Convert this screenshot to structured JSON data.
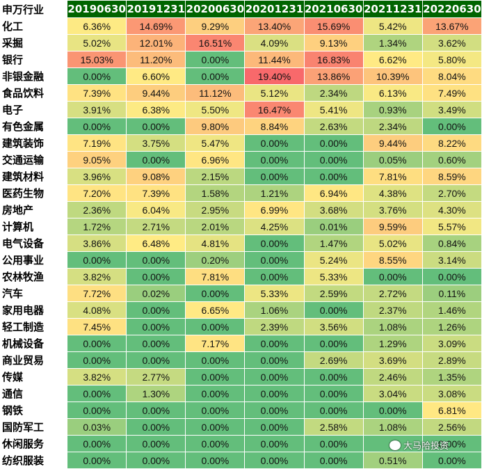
{
  "table": {
    "corner_label": "申万行业",
    "columns": [
      "20190630",
      "20191231",
      "20200630",
      "20201231",
      "20210630",
      "20211231",
      "20220630"
    ],
    "rows": [
      {
        "label": "化工",
        "values": [
          "6.36%",
          "14.69%",
          "9.29%",
          "13.40%",
          "15.69%",
          "5.42%",
          "13.67%"
        ]
      },
      {
        "label": "采掘",
        "values": [
          "5.02%",
          "12.01%",
          "16.51%",
          "4.09%",
          "9.13%",
          "1.34%",
          "3.62%"
        ]
      },
      {
        "label": "银行",
        "values": [
          "15.03%",
          "11.20%",
          "0.00%",
          "11.44%",
          "16.83%",
          "6.62%",
          "5.80%"
        ]
      },
      {
        "label": "非银金融",
        "values": [
          "0.00%",
          "6.60%",
          "0.00%",
          "19.40%",
          "13.86%",
          "10.39%",
          "8.04%"
        ]
      },
      {
        "label": "食品饮料",
        "values": [
          "7.39%",
          "9.44%",
          "11.12%",
          "5.12%",
          "2.34%",
          "6.13%",
          "7.49%"
        ]
      },
      {
        "label": "电子",
        "values": [
          "3.91%",
          "6.38%",
          "5.50%",
          "16.47%",
          "5.41%",
          "0.93%",
          "3.49%"
        ]
      },
      {
        "label": "有色金属",
        "values": [
          "0.00%",
          "0.00%",
          "9.80%",
          "8.84%",
          "2.63%",
          "2.34%",
          "0.00%"
        ]
      },
      {
        "label": "建筑装饰",
        "values": [
          "7.19%",
          "3.75%",
          "5.47%",
          "0.00%",
          "0.00%",
          "9.44%",
          "8.22%"
        ]
      },
      {
        "label": "交通运输",
        "values": [
          "9.05%",
          "0.00%",
          "6.96%",
          "0.00%",
          "0.00%",
          "0.05%",
          "0.60%"
        ]
      },
      {
        "label": "建筑材料",
        "values": [
          "3.96%",
          "9.08%",
          "2.15%",
          "0.00%",
          "0.00%",
          "7.81%",
          "8.59%"
        ]
      },
      {
        "label": "医药生物",
        "values": [
          "7.20%",
          "7.39%",
          "1.58%",
          "1.21%",
          "6.94%",
          "4.38%",
          "2.70%"
        ]
      },
      {
        "label": "房地产",
        "values": [
          "2.36%",
          "6.04%",
          "2.95%",
          "6.99%",
          "3.68%",
          "3.76%",
          "4.30%"
        ]
      },
      {
        "label": "计算机",
        "values": [
          "1.72%",
          "2.71%",
          "2.01%",
          "4.25%",
          "0.01%",
          "9.59%",
          "5.57%"
        ]
      },
      {
        "label": "电气设备",
        "values": [
          "3.86%",
          "6.48%",
          "4.81%",
          "0.00%",
          "1.47%",
          "5.02%",
          "0.84%"
        ]
      },
      {
        "label": "公用事业",
        "values": [
          "0.00%",
          "0.00%",
          "0.20%",
          "0.00%",
          "5.24%",
          "8.55%",
          "3.14%"
        ]
      },
      {
        "label": "农林牧渔",
        "values": [
          "3.82%",
          "0.00%",
          "7.81%",
          "0.00%",
          "5.33%",
          "0.00%",
          "0.00%"
        ]
      },
      {
        "label": "汽车",
        "values": [
          "7.72%",
          "0.02%",
          "0.00%",
          "5.33%",
          "2.59%",
          "2.72%",
          "0.11%"
        ]
      },
      {
        "label": "家用电器",
        "values": [
          "4.08%",
          "0.00%",
          "6.65%",
          "1.06%",
          "0.00%",
          "2.37%",
          "1.46%"
        ]
      },
      {
        "label": "轻工制造",
        "values": [
          "7.45%",
          "0.00%",
          "0.00%",
          "2.39%",
          "3.56%",
          "1.08%",
          "1.26%"
        ]
      },
      {
        "label": "机械设备",
        "values": [
          "0.00%",
          "0.00%",
          "7.17%",
          "0.00%",
          "0.00%",
          "1.29%",
          "3.09%"
        ]
      },
      {
        "label": "商业贸易",
        "values": [
          "0.00%",
          "0.00%",
          "0.00%",
          "0.00%",
          "2.69%",
          "3.69%",
          "2.89%"
        ]
      },
      {
        "label": "传媒",
        "values": [
          "3.82%",
          "2.77%",
          "0.00%",
          "0.00%",
          "0.00%",
          "2.46%",
          "1.35%"
        ]
      },
      {
        "label": "通信",
        "values": [
          "0.00%",
          "1.30%",
          "0.00%",
          "0.00%",
          "0.00%",
          "3.04%",
          "3.08%"
        ]
      },
      {
        "label": "钢铁",
        "values": [
          "0.00%",
          "0.00%",
          "0.00%",
          "0.00%",
          "0.00%",
          "0.00%",
          "6.81%"
        ]
      },
      {
        "label": "国防军工",
        "values": [
          "0.03%",
          "0.00%",
          "0.00%",
          "0.00%",
          "2.58%",
          "1.08%",
          "2.56%"
        ]
      },
      {
        "label": "休闲服务",
        "values": [
          "0.00%",
          "0.00%",
          "0.00%",
          "0.00%",
          "0.00%",
          "",
          "0.00%"
        ]
      },
      {
        "label": "纺织服装",
        "values": [
          "0.00%",
          "0.00%",
          "0.00%",
          "0.00%",
          "0.00%",
          "0.51%",
          "0.00%"
        ]
      }
    ]
  },
  "colors": {
    "header_bg": "#006400",
    "scale_low": "#63be7b",
    "scale_mid": "#ffeb84",
    "scale_high": "#f8696b"
  },
  "watermark": {
    "icon": "wechat-icon",
    "text": "大马哈投资"
  }
}
